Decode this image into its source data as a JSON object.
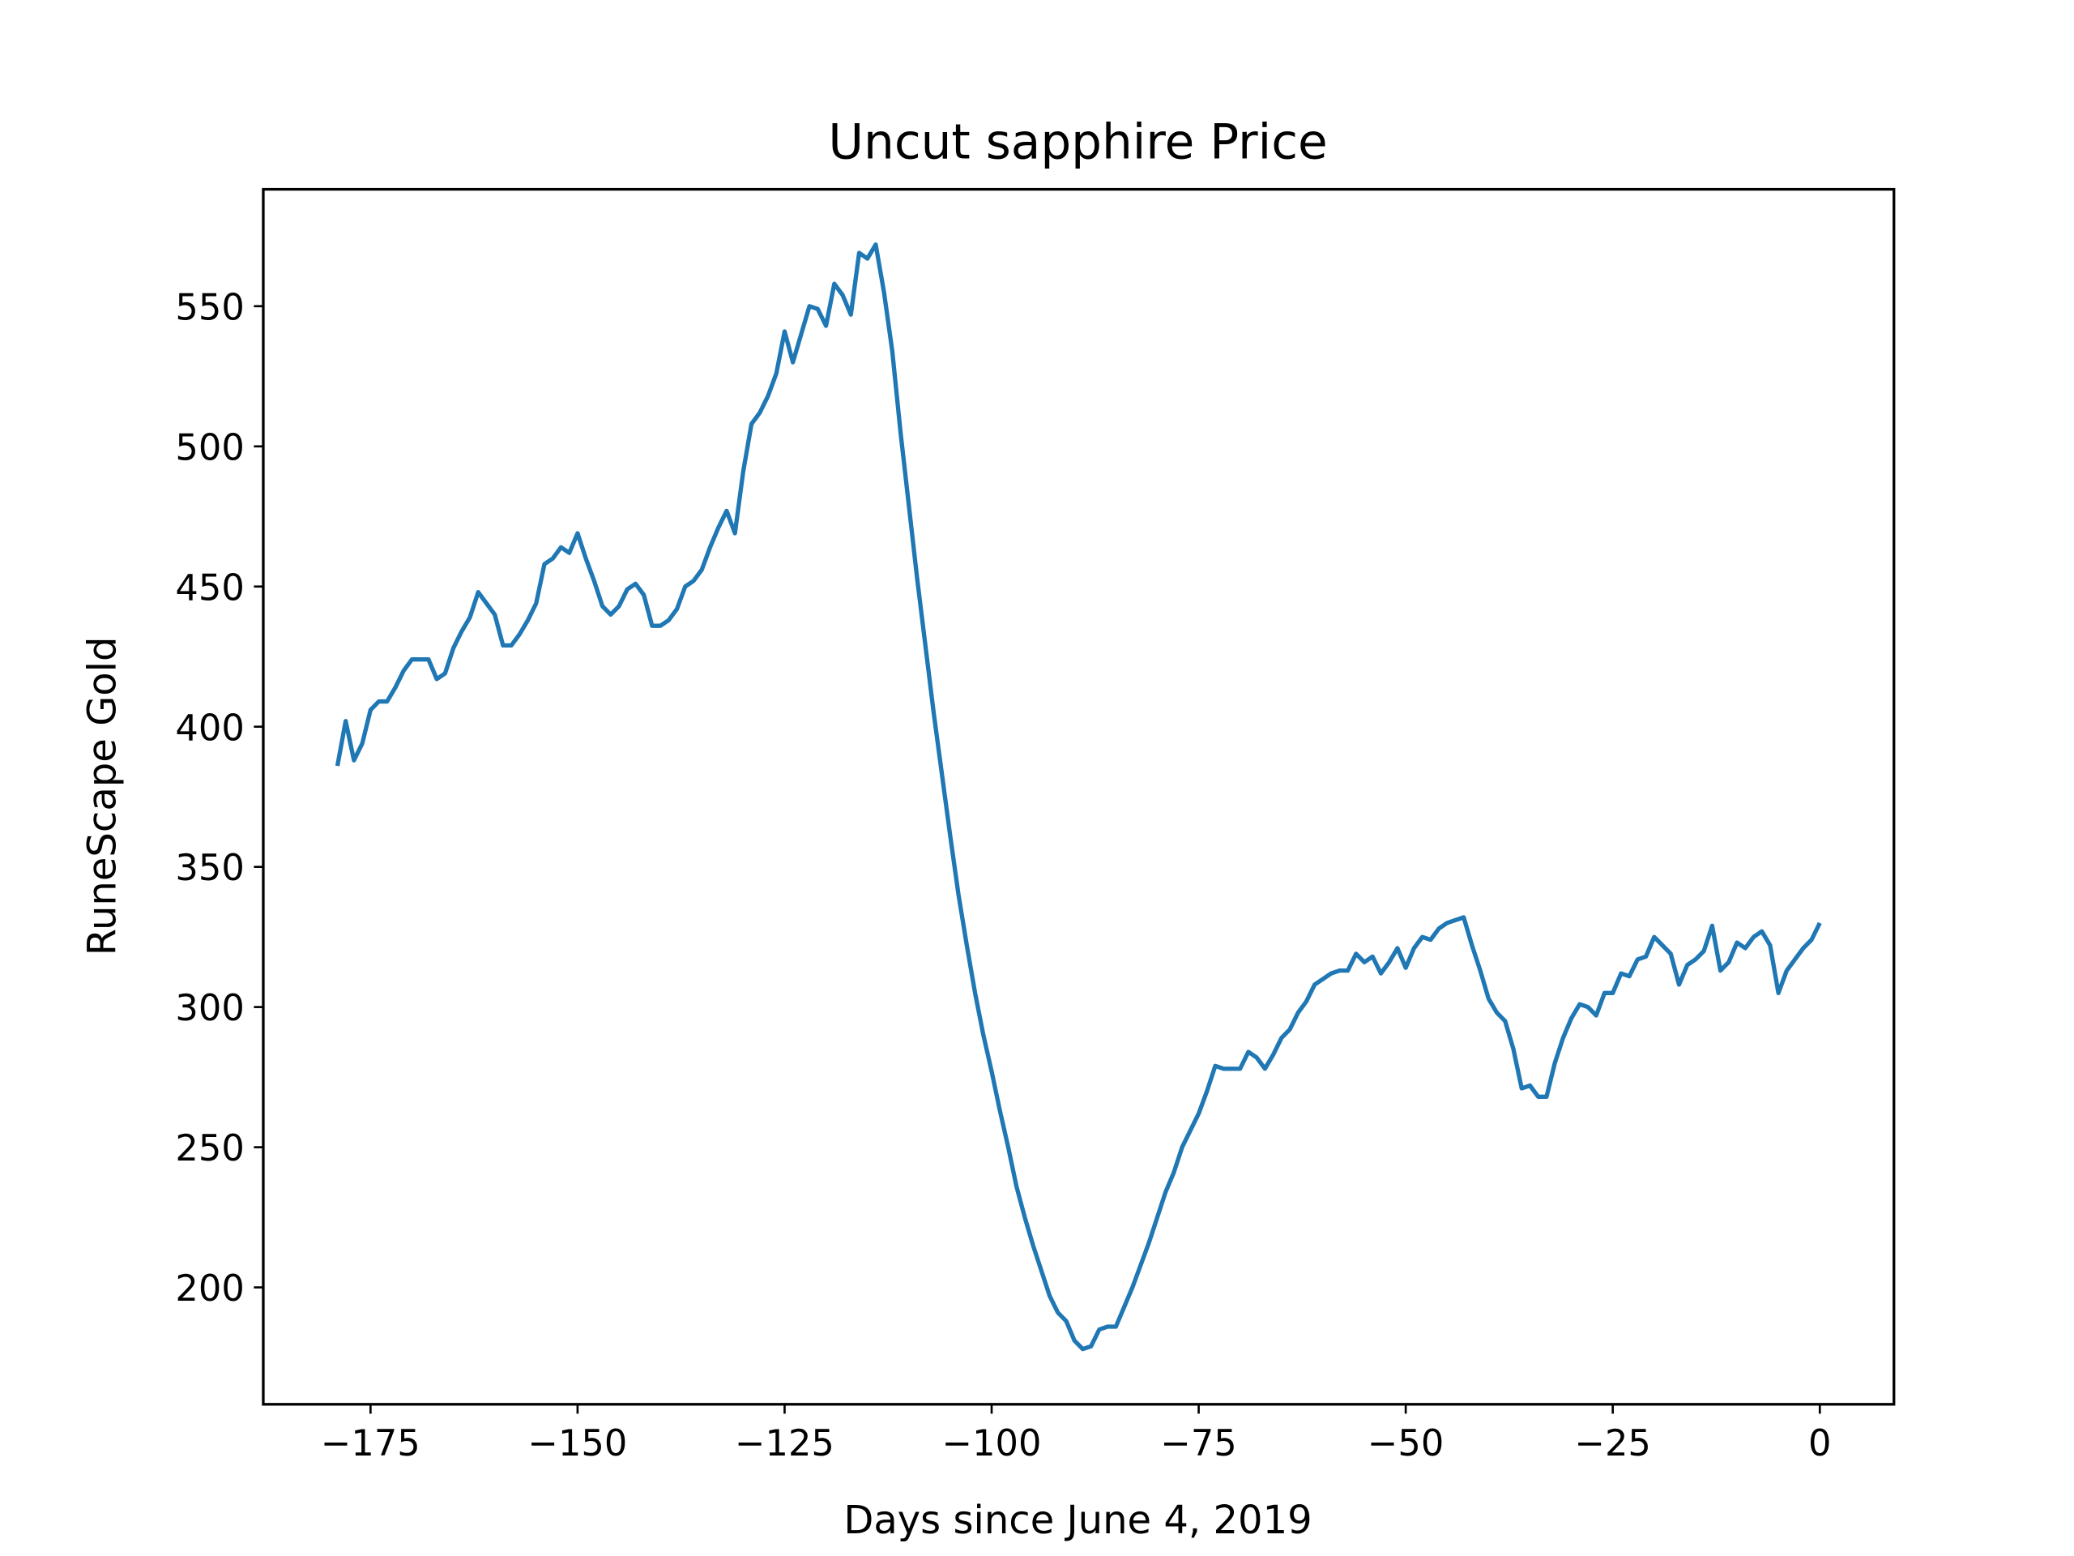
{
  "chart_data": {
    "type": "line",
    "title": "Uncut sapphire Price",
    "x_label": "Days since June 4, 2019",
    "y_label": "RuneScape Gold",
    "color": "#1f77b4",
    "x": [
      -179,
      -178,
      -177,
      -176,
      -175,
      -174,
      -173,
      -172,
      -171,
      -170,
      -169,
      -168,
      -167,
      -166,
      -165,
      -164,
      -163,
      -162,
      -161,
      -160,
      -159,
      -158,
      -157,
      -156,
      -155,
      -154,
      -153,
      -152,
      -151,
      -150,
      -149,
      -148,
      -147,
      -146,
      -145,
      -144,
      -143,
      -142,
      -141,
      -140,
      -139,
      -138,
      -137,
      -136,
      -135,
      -134,
      -133,
      -132,
      -131,
      -130,
      -129,
      -128,
      -127,
      -126,
      -125,
      -124,
      -123,
      -122,
      -121,
      -120,
      -119,
      -118,
      -117,
      -116,
      -115,
      -114,
      -113,
      -112,
      -111,
      -110,
      -109,
      -108,
      -107,
      -106,
      -105,
      -104,
      -103,
      -102,
      -101,
      -100,
      -99,
      -98,
      -97,
      -96,
      -95,
      -94,
      -93,
      -92,
      -91,
      -90,
      -89,
      -88,
      -87,
      -86,
      -85,
      -84,
      -83,
      -82,
      -81,
      -80,
      -79,
      -78,
      -77,
      -76,
      -75,
      -74,
      -73,
      -72,
      -71,
      -70,
      -69,
      -68,
      -67,
      -66,
      -65,
      -64,
      -63,
      -62,
      -61,
      -60,
      -59,
      -58,
      -57,
      -56,
      -55,
      -54,
      -53,
      -52,
      -51,
      -50,
      -49,
      -48,
      -47,
      -46,
      -45,
      -44,
      -43,
      -42,
      -41,
      -40,
      -39,
      -38,
      -37,
      -36,
      -35,
      -34,
      -33,
      -32,
      -31,
      -30,
      -29,
      -28,
      -27,
      -26,
      -25,
      -24,
      -23,
      -22,
      -21,
      -20,
      -19,
      -18,
      -17,
      -16,
      -15,
      -14,
      -13,
      -12,
      -11,
      -10,
      -9,
      -8,
      -7,
      -6,
      -5,
      -4,
      -3,
      -2,
      -1,
      0
    ],
    "values": [
      386,
      402,
      388,
      394,
      406,
      409,
      409,
      414,
      420,
      424,
      424,
      424,
      417,
      419,
      428,
      434,
      439,
      448,
      444,
      440,
      429,
      429,
      433,
      438,
      444,
      458,
      460,
      464,
      462,
      469,
      460,
      452,
      443,
      440,
      443,
      449,
      451,
      447,
      436,
      436,
      438,
      442,
      450,
      452,
      456,
      464,
      471,
      477,
      469,
      491,
      508,
      512,
      518,
      526,
      541,
      530,
      540,
      550,
      549,
      543,
      558,
      554,
      547,
      569,
      567,
      572,
      555,
      534,
      505,
      479,
      453,
      429,
      405,
      383,
      361,
      340,
      322,
      305,
      290,
      277,
      263,
      250,
      236,
      225,
      215,
      206,
      197,
      191,
      188,
      181,
      178,
      179,
      185,
      186,
      186,
      193,
      200,
      208,
      216,
      225,
      234,
      241,
      250,
      256,
      262,
      270,
      279,
      278,
      278,
      278,
      284,
      282,
      278,
      283,
      289,
      292,
      298,
      302,
      308,
      310,
      312,
      313,
      313,
      319,
      316,
      318,
      312,
      316,
      321,
      314,
      321,
      325,
      324,
      328,
      330,
      331,
      332,
      322,
      313,
      303,
      298,
      295,
      285,
      271,
      272,
      268,
      268,
      280,
      289,
      296,
      301,
      300,
      297,
      305,
      305,
      312,
      311,
      317,
      318,
      325,
      322,
      319,
      308,
      315,
      317,
      320,
      329,
      313,
      316,
      323,
      321,
      325,
      327,
      322,
      305,
      313,
      317,
      321,
      324,
      330
    ],
    "xlim": [
      -187.95,
      8.95
    ],
    "ylim": [
      158.3,
      591.7
    ],
    "xticks": [
      {
        "value": -175,
        "label": "−175"
      },
      {
        "value": -150,
        "label": "−150"
      },
      {
        "value": -125,
        "label": "−125"
      },
      {
        "value": -100,
        "label": "−100"
      },
      {
        "value": -75,
        "label": "−75"
      },
      {
        "value": -50,
        "label": "−50"
      },
      {
        "value": -25,
        "label": "−25"
      },
      0
    ],
    "yticks": [
      200,
      250,
      300,
      350,
      400,
      450,
      500,
      550
    ],
    "grid": false
  }
}
